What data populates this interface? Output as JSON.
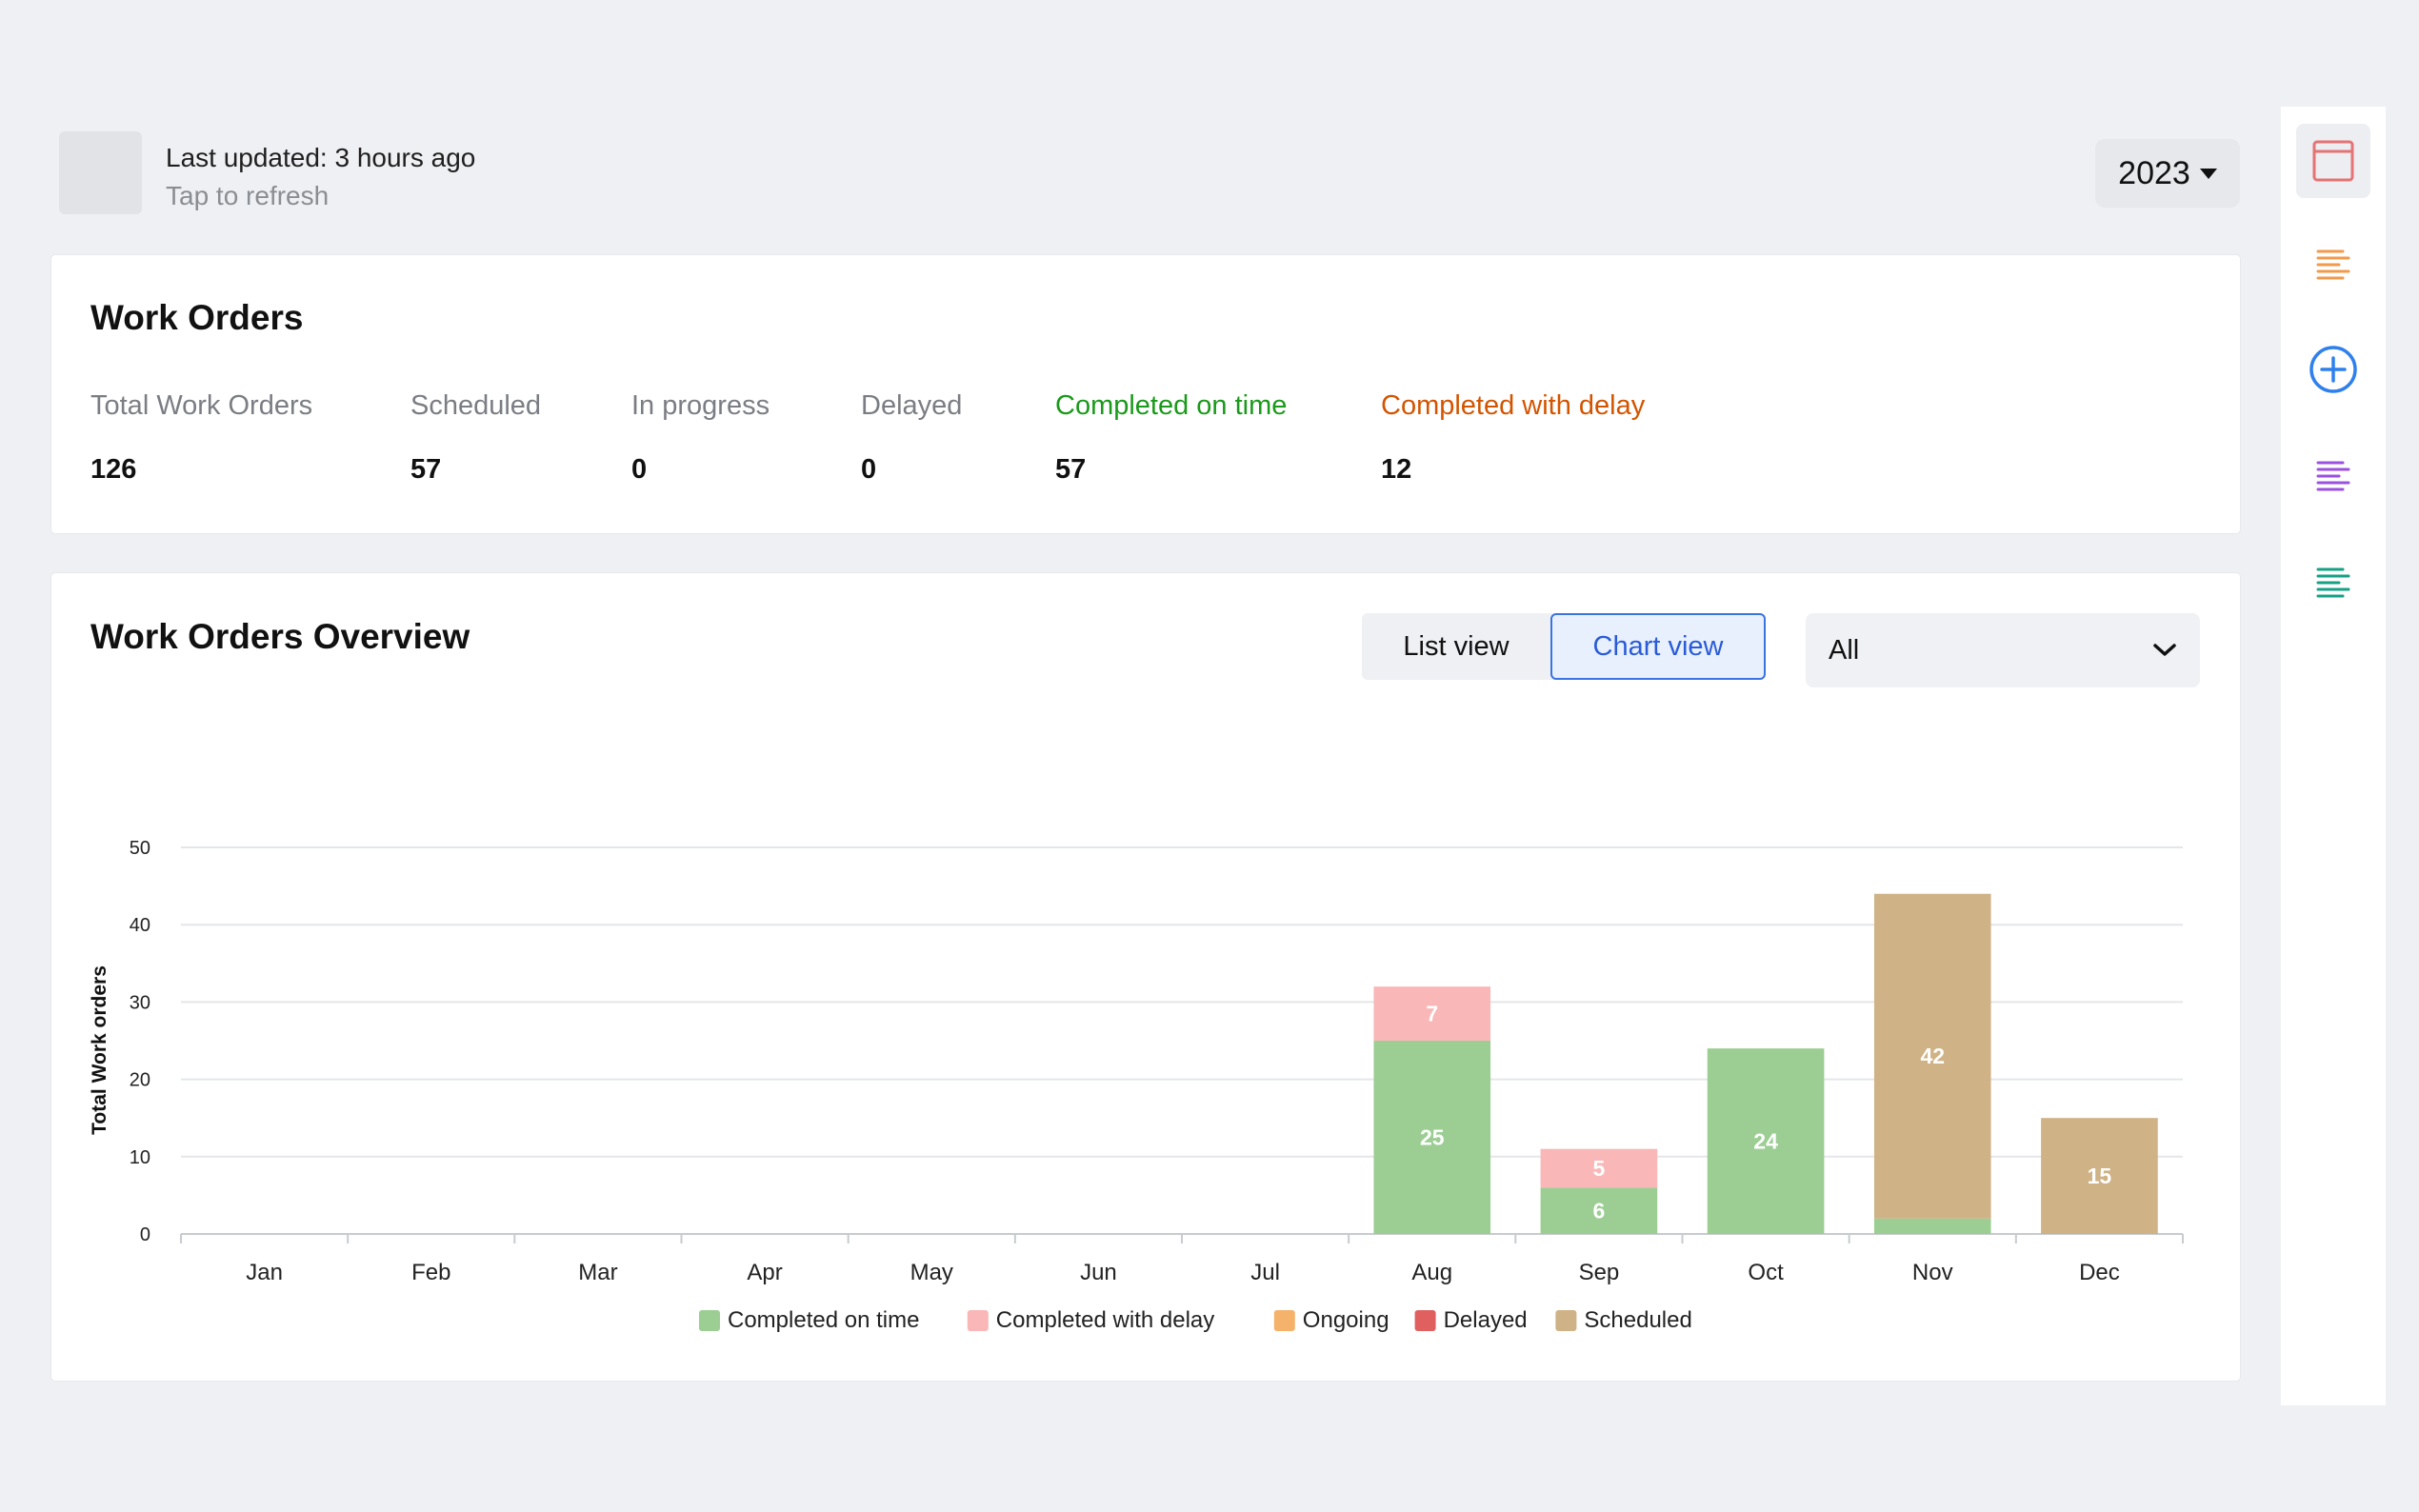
{
  "header": {
    "last_updated": "Last updated: 3 hours ago",
    "refresh_label": "Tap to refresh",
    "year": "2023"
  },
  "summary": {
    "title": "Work Orders",
    "stats": [
      {
        "label": "Total Work Orders",
        "value": "126",
        "color": "#7a7d83"
      },
      {
        "label": "Scheduled",
        "value": "57",
        "color": "#7a7d83"
      },
      {
        "label": "In progress",
        "value": "0",
        "color": "#7a7d83"
      },
      {
        "label": "Delayed",
        "value": "0",
        "color": "#7a7d83"
      },
      {
        "label": "Completed on time",
        "value": "57",
        "color": "#1a9a1a"
      },
      {
        "label": "Completed with delay",
        "value": "12",
        "color": "#d35400"
      }
    ]
  },
  "overview": {
    "title": "Work Orders Overview",
    "list_view_label": "List view",
    "chart_view_label": "Chart view",
    "filter_value": "All"
  },
  "rail": {
    "icons": [
      "layout-icon",
      "orange-list-icon",
      "add-circle-icon",
      "purple-list-icon",
      "teal-list-icon"
    ],
    "colors": [
      "#e57373",
      "#f2994a",
      "#2f80ed",
      "#9b51e0",
      "#16a085"
    ]
  },
  "chart_data": {
    "type": "bar",
    "stacked": true,
    "categories": [
      "Jan",
      "Feb",
      "Mar",
      "Apr",
      "May",
      "Jun",
      "Jul",
      "Aug",
      "Sep",
      "Oct",
      "Nov",
      "Dec"
    ],
    "series": [
      {
        "name": "Completed on time",
        "color": "#9cce94",
        "values": [
          0,
          0,
          0,
          0,
          0,
          0,
          0,
          25,
          6,
          24,
          2,
          0
        ]
      },
      {
        "name": "Completed with delay",
        "color": "#f9b7b7",
        "values": [
          0,
          0,
          0,
          0,
          0,
          0,
          0,
          7,
          5,
          0,
          0,
          0
        ]
      },
      {
        "name": "Ongoing",
        "color": "#f5b26b",
        "values": [
          0,
          0,
          0,
          0,
          0,
          0,
          0,
          0,
          0,
          0,
          0,
          0
        ]
      },
      {
        "name": "Delayed",
        "color": "#e06060",
        "values": [
          0,
          0,
          0,
          0,
          0,
          0,
          0,
          0,
          0,
          0,
          0,
          0
        ]
      },
      {
        "name": "Scheduled",
        "color": "#cfb285",
        "values": [
          0,
          0,
          0,
          0,
          0,
          0,
          0,
          0,
          0,
          0,
          42,
          15
        ]
      }
    ],
    "data_labels_min": 5,
    "ylabel": "Total Work orders",
    "ylim": [
      0,
      50
    ],
    "yticks": [
      0,
      10,
      20,
      30,
      40,
      50
    ],
    "grid": true,
    "legend_position": "bottom-center"
  }
}
